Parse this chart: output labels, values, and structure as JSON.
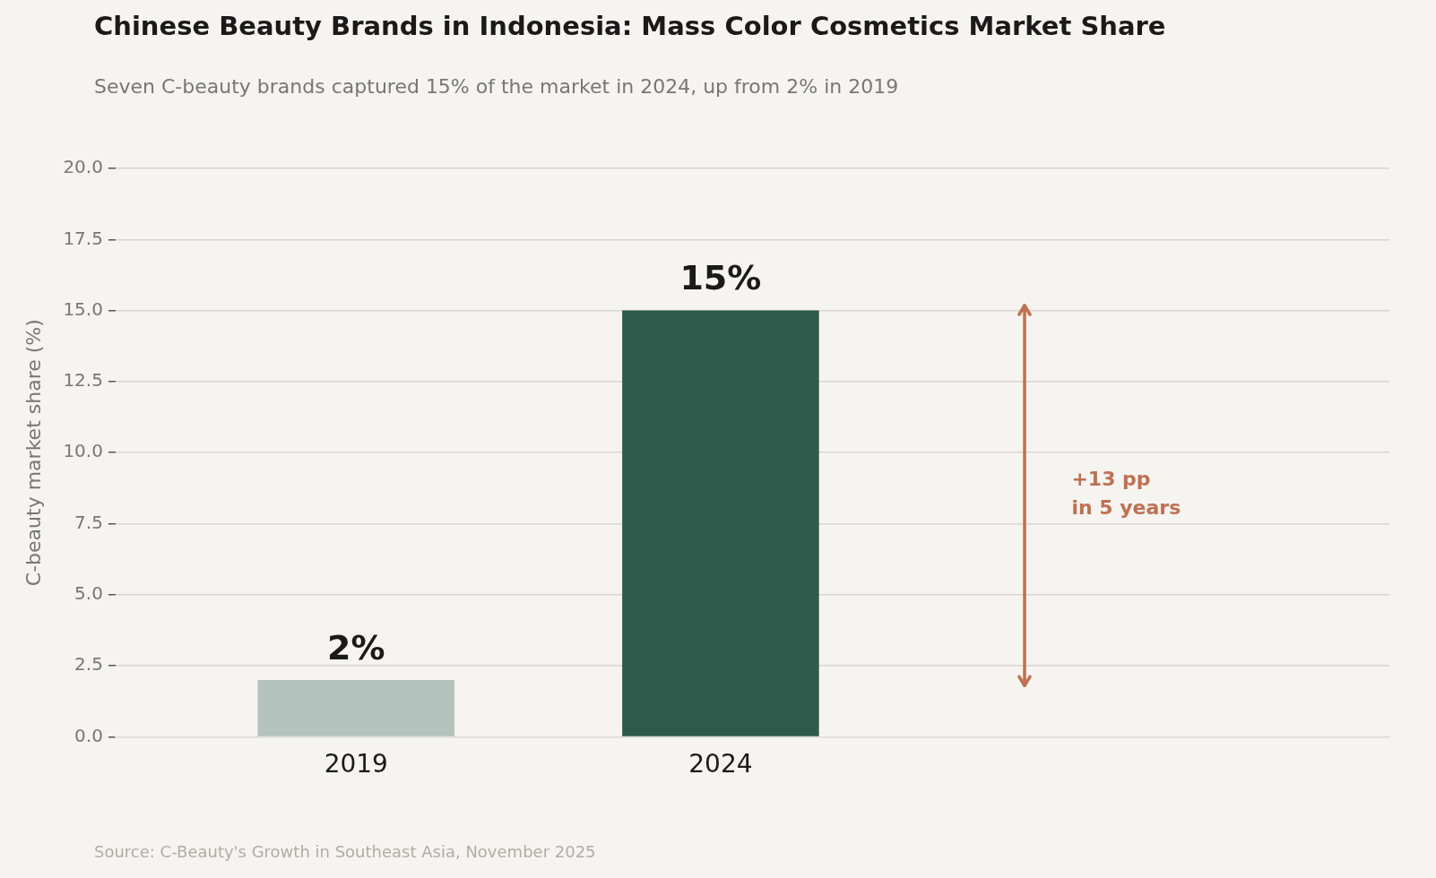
{
  "chart_data": {
    "type": "bar",
    "title": "Chinese Beauty Brands in Indonesia: Mass Color Cosmetics Market Share",
    "subtitle": "Seven C-beauty brands captured 15% of the market in 2024, up from 2% in 2019",
    "ylabel": "C-beauty market share (%)",
    "categories": [
      "2019",
      "2024"
    ],
    "values": [
      2,
      15
    ],
    "colors": [
      "#b4c3be",
      "#2e5a4c"
    ],
    "value_labels": [
      "2%",
      "15%"
    ],
    "ylim": [
      0,
      20
    ],
    "yticks": [
      {
        "value": 0,
        "label": "0.0"
      },
      {
        "value": 2.5,
        "label": "2.5"
      },
      {
        "value": 5,
        "label": "5.0"
      },
      {
        "value": 7.5,
        "label": "7.5"
      },
      {
        "value": 10,
        "label": "10.0"
      },
      {
        "value": 12.5,
        "label": "12.5"
      },
      {
        "value": 15,
        "label": "15.0"
      },
      {
        "value": 17.5,
        "label": "17.5"
      },
      {
        "value": 20,
        "label": "20.0"
      }
    ],
    "grid": "y",
    "legend": false,
    "annotations": [
      "+13 pp\nin 5 years",
      "Source: C-Beauty's Growth in Southeast Asia, November 2025"
    ]
  }
}
